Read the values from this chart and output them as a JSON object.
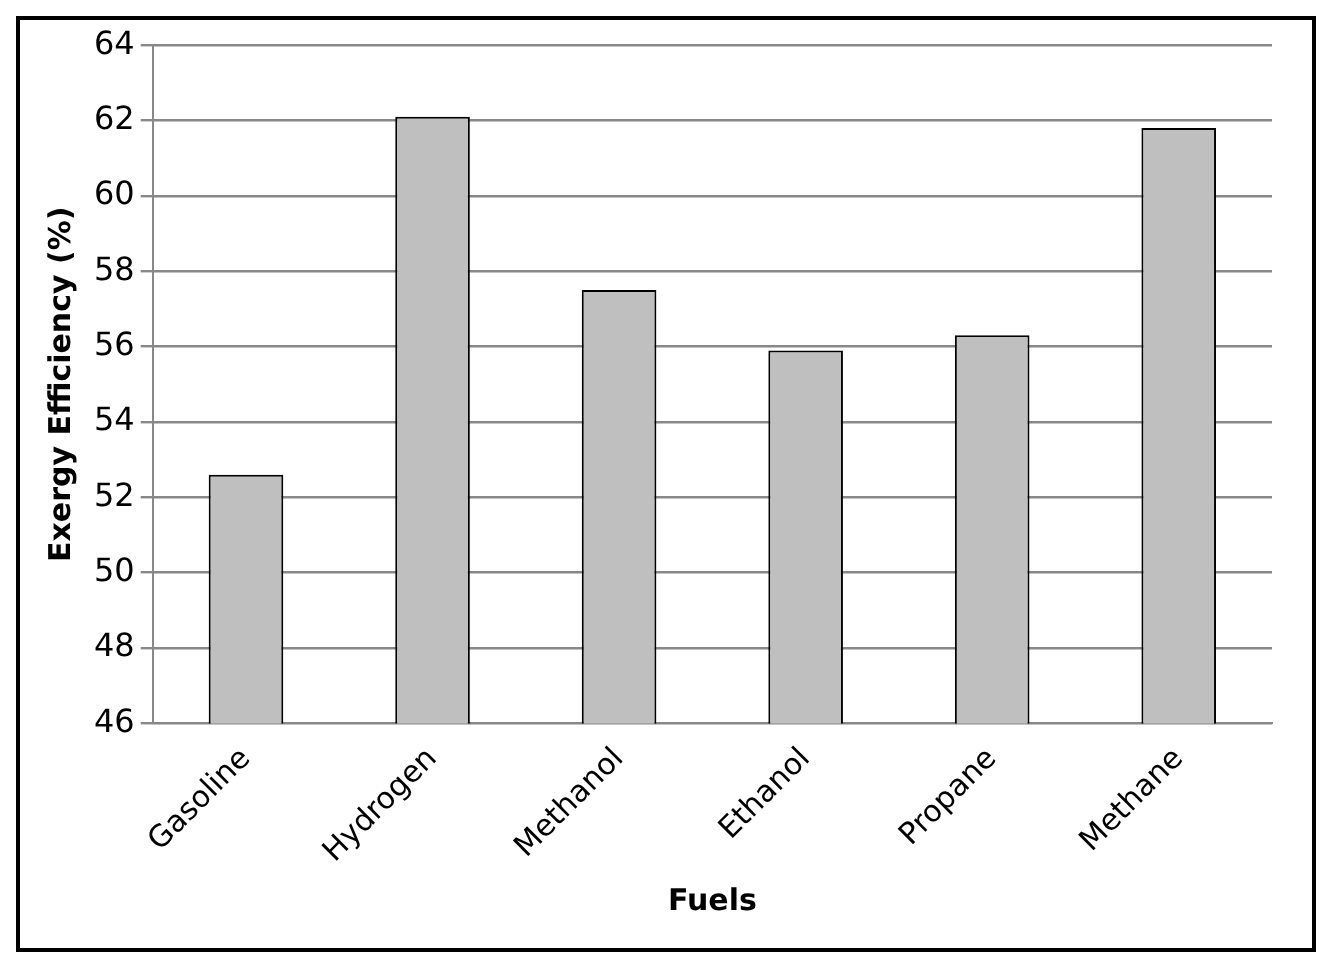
{
  "chart_data": {
    "type": "bar",
    "xlabel": "Fuels",
    "ylabel": "Exergy Efficiency (%)",
    "categories": [
      "Gasoline",
      "Hydrogen",
      "Methanol",
      "Ethanol",
      "Propane",
      "Methane"
    ],
    "values": [
      52.6,
      62.1,
      57.5,
      55.9,
      56.3,
      61.8
    ],
    "color": "#bfbfbf",
    "ylim": [
      46,
      64
    ],
    "yticks": [
      46,
      48,
      50,
      52,
      54,
      56,
      58,
      60,
      62,
      64
    ],
    "grid": "y",
    "legend": false
  }
}
